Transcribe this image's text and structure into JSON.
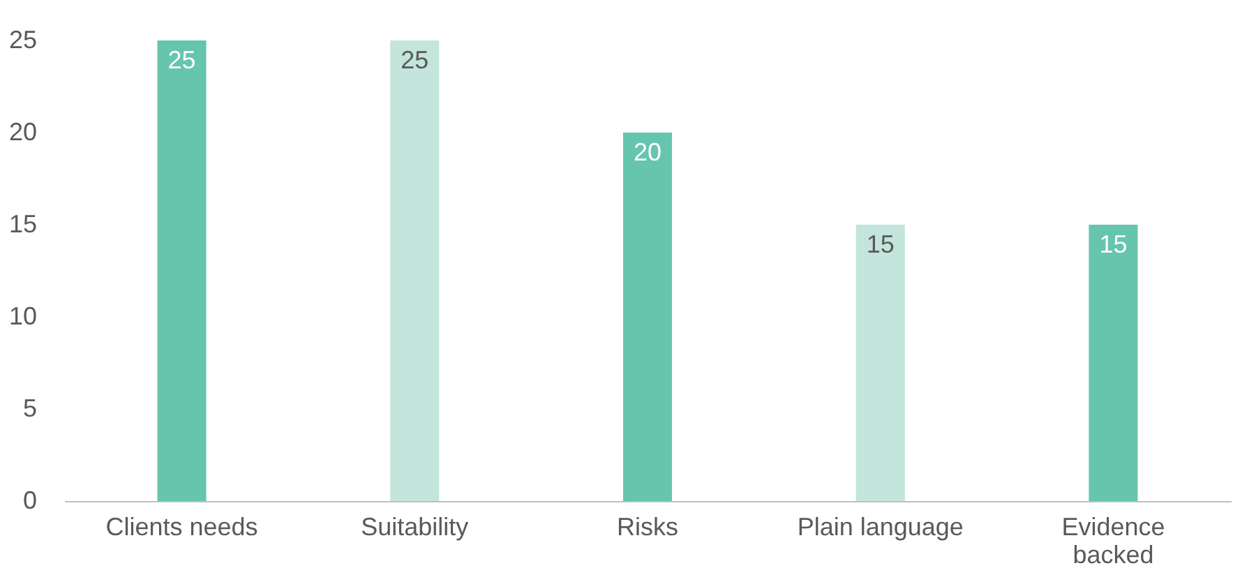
{
  "chart_data": {
    "type": "bar",
    "categories": [
      "Clients needs",
      "Suitability",
      "Risks",
      "Plain language",
      "Evidence backed"
    ],
    "values": [
      25,
      25,
      20,
      15,
      15
    ],
    "colors": [
      "#66c5ad",
      "#c3e5dc",
      "#66c5ad",
      "#c3e5dc",
      "#66c5ad"
    ],
    "ylim": [
      0,
      25
    ],
    "yticks": [
      0,
      5,
      10,
      15,
      20,
      25
    ],
    "data_labels": true,
    "grid": false
  }
}
